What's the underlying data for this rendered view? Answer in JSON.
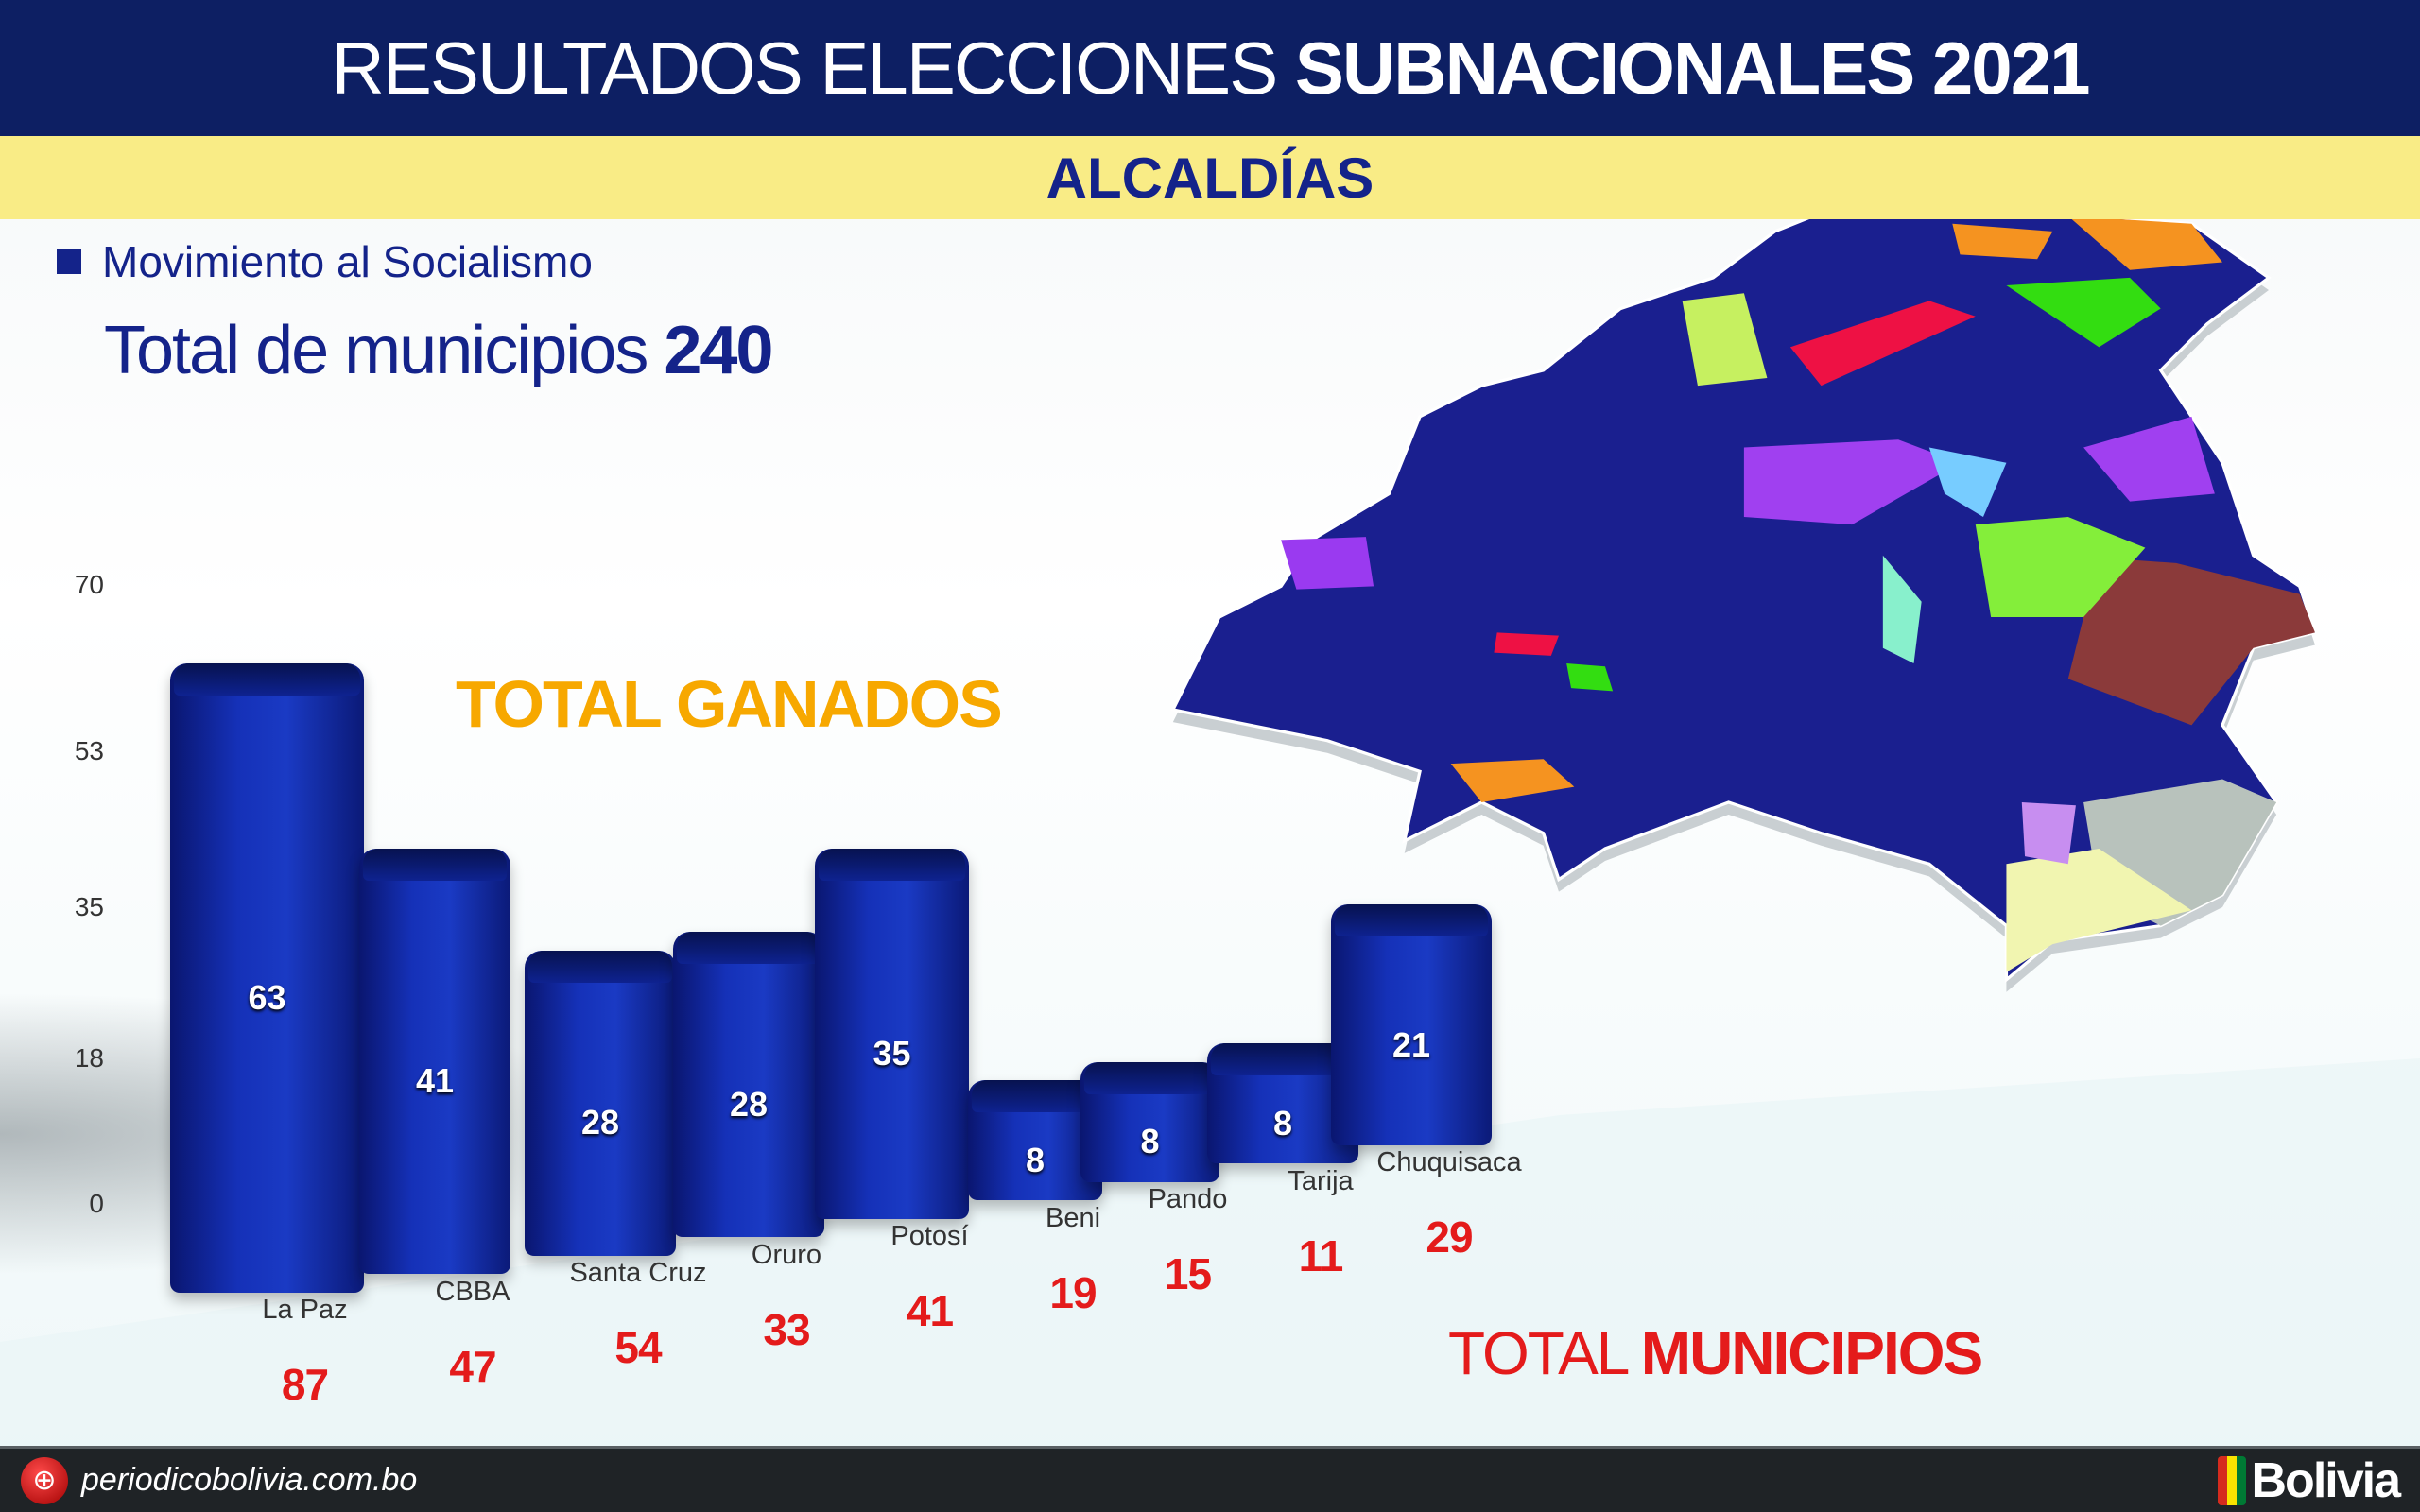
{
  "header": {
    "title_light": "RESULTADOS ELECCIONES ",
    "title_bold": "SUBNACIONALES 2021"
  },
  "subheader": "ALCALDÍAS",
  "legend": {
    "label": "Movimiento al Socialismo",
    "color": "#14238a"
  },
  "total": {
    "label": "Total de municipios ",
    "value": "240"
  },
  "ganados_label": "TOTAL GANADOS",
  "municipios_label": {
    "light": "TOTAL ",
    "bold": "MUNICIPIOS"
  },
  "chart_data": {
    "type": "bar",
    "title": "",
    "categories": [
      "La Paz",
      "CBBA",
      "Santa Cruz",
      "Oruro",
      "Potosí",
      "Beni",
      "Pando",
      "Tarija",
      "Chuquisaca"
    ],
    "series": [
      {
        "name": "Movimiento al Socialismo",
        "values": [
          63,
          41,
          28,
          28,
          35,
          8,
          8,
          8,
          21
        ],
        "color": "#1531b8"
      }
    ],
    "totals": [
      87,
      47,
      54,
      33,
      41,
      19,
      15,
      11,
      29
    ],
    "yticks": [
      "70",
      "53",
      "35",
      "18",
      "0"
    ],
    "ylim": [
      0,
      70
    ],
    "grid": false
  },
  "footer": {
    "site": "periodicobolivia.com.bo",
    "logo": "Bolivia",
    "globe_icon": "globe-icon"
  }
}
